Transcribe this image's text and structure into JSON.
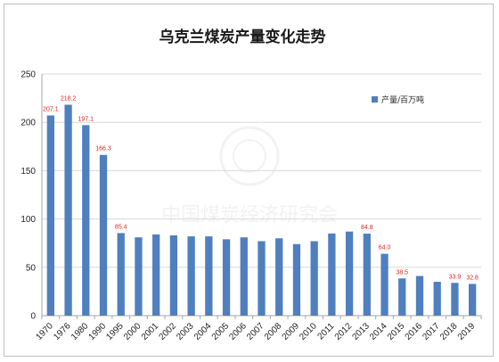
{
  "chart_data": {
    "type": "bar",
    "title": "乌克兰煤炭产量变化走势",
    "xlabel": "",
    "ylabel": "",
    "ylim": [
      0,
      250
    ],
    "yticks": [
      0,
      50,
      100,
      150,
      200,
      250
    ],
    "grid": true,
    "legend_position": "top-right",
    "categories": [
      "1970",
      "1976",
      "1980",
      "1990",
      "1995",
      "2000",
      "2001",
      "2002",
      "2003",
      "2004",
      "2005",
      "2006",
      "2007",
      "2008",
      "2009",
      "2010",
      "2011",
      "2012",
      "2013",
      "2014",
      "2015",
      "2016",
      "2017",
      "2018",
      "2019"
    ],
    "series": [
      {
        "name": "产量/百万吨",
        "color": "#4f7fbe",
        "values": [
          207.1,
          218.2,
          197.1,
          166.3,
          85.4,
          81,
          84,
          83,
          82,
          82,
          79,
          81,
          77,
          80,
          74,
          77,
          85,
          87,
          84.8,
          64.0,
          38.5,
          41,
          35,
          33.9,
          32.8
        ]
      }
    ],
    "data_labels": [
      {
        "index": 0,
        "text": "207.1"
      },
      {
        "index": 1,
        "text": "218.2"
      },
      {
        "index": 2,
        "text": "197.1"
      },
      {
        "index": 3,
        "text": "166.3"
      },
      {
        "index": 4,
        "text": "85.4"
      },
      {
        "index": 18,
        "text": "84.8"
      },
      {
        "index": 19,
        "text": "64.0"
      },
      {
        "index": 20,
        "text": "38.5"
      },
      {
        "index": 23,
        "text": "33.9"
      },
      {
        "index": 24,
        "text": "32.8"
      }
    ],
    "label_color": "#e02020",
    "watermark": "中国煤炭经济研究会"
  }
}
